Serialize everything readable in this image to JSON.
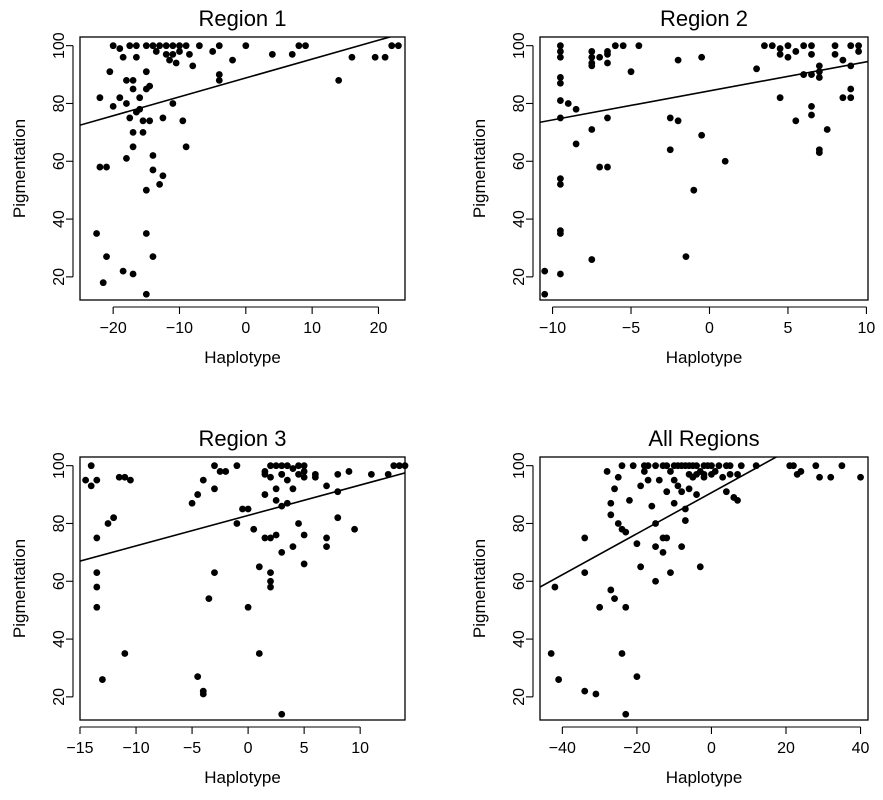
{
  "chart_data": [
    {
      "type": "scatter",
      "title": "Region 1",
      "xlabel": "Haplotype",
      "ylabel": "Pigmentation",
      "xlim": [
        -25,
        24
      ],
      "ylim": [
        12,
        103
      ],
      "xticks": [
        -20,
        -10,
        0,
        10,
        20
      ],
      "yticks": [
        20,
        40,
        60,
        80,
        100
      ],
      "grid": false,
      "regression_line": [
        [
          -25,
          72.5
        ],
        [
          24,
          104.5
        ]
      ],
      "points": [
        [
          -22.5,
          35
        ],
        [
          -22,
          82
        ],
        [
          -22,
          58
        ],
        [
          -21,
          58
        ],
        [
          -21,
          27
        ],
        [
          -20.5,
          91
        ],
        [
          -20,
          100
        ],
        [
          -20,
          79
        ],
        [
          -19,
          99
        ],
        [
          -19,
          82
        ],
        [
          -18.5,
          96
        ],
        [
          -18.5,
          22
        ],
        [
          -18,
          88
        ],
        [
          -18,
          80
        ],
        [
          -18,
          61
        ],
        [
          -17.5,
          100
        ],
        [
          -17.5,
          75
        ],
        [
          -17,
          88
        ],
        [
          -17,
          85
        ],
        [
          -17,
          70
        ],
        [
          -17,
          65
        ],
        [
          -16.5,
          100
        ],
        [
          -16.5,
          96
        ],
        [
          -16.5,
          77
        ],
        [
          -16,
          82
        ],
        [
          -16,
          78
        ],
        [
          -15.5,
          70
        ],
        [
          -15.5,
          74
        ],
        [
          -15,
          100
        ],
        [
          -15,
          91
        ],
        [
          -15,
          85
        ],
        [
          -15,
          50
        ],
        [
          -15,
          35
        ],
        [
          -15,
          14
        ],
        [
          -14.5,
          86
        ],
        [
          -14.5,
          74
        ],
        [
          -14,
          100
        ],
        [
          -14,
          62
        ],
        [
          -14,
          57
        ],
        [
          -14,
          27
        ],
        [
          -13.5,
          98
        ],
        [
          -13,
          100
        ],
        [
          -13,
          52
        ],
        [
          -12.5,
          55
        ],
        [
          -12.5,
          75
        ],
        [
          -12,
          100
        ],
        [
          -12,
          97
        ],
        [
          -11.5,
          95
        ],
        [
          -11,
          100
        ],
        [
          -11,
          97
        ],
        [
          -11,
          80
        ],
        [
          -10.5,
          94
        ],
        [
          -10,
          98
        ],
        [
          -10,
          100
        ],
        [
          -9.5,
          74
        ],
        [
          -9,
          65
        ],
        [
          -9,
          100
        ],
        [
          -8.5,
          97
        ],
        [
          -8,
          93
        ],
        [
          -7,
          100
        ],
        [
          -5,
          98
        ],
        [
          -4,
          100
        ],
        [
          -4,
          90
        ],
        [
          -4,
          88
        ],
        [
          -2,
          95
        ],
        [
          0,
          100
        ],
        [
          4,
          97
        ],
        [
          7,
          97
        ],
        [
          8,
          100
        ],
        [
          9,
          100
        ],
        [
          14,
          88
        ],
        [
          16,
          96
        ],
        [
          19.5,
          96
        ],
        [
          21,
          96
        ],
        [
          22,
          100
        ],
        [
          23,
          100
        ],
        [
          -21.5,
          18
        ],
        [
          -17,
          21
        ]
      ],
      "n_points": 78
    },
    {
      "type": "scatter",
      "title": "Region 2",
      "xlabel": "Haplotype",
      "ylabel": "Pigmentation",
      "xlim": [
        -10.8,
        10.1
      ],
      "ylim": [
        12,
        103
      ],
      "xticks": [
        -10,
        -5,
        0,
        5,
        10
      ],
      "yticks": [
        20,
        40,
        60,
        80,
        100
      ],
      "grid": false,
      "regression_line": [
        [
          -10.8,
          73.5
        ],
        [
          10.1,
          94.5
        ]
      ],
      "points": [
        [
          -10.5,
          22
        ],
        [
          -10.5,
          14
        ],
        [
          -9.5,
          100
        ],
        [
          -9.5,
          98
        ],
        [
          -9.5,
          96
        ],
        [
          -9.5,
          89
        ],
        [
          -9.5,
          87
        ],
        [
          -9.5,
          81
        ],
        [
          -9.5,
          75
        ],
        [
          -9.5,
          54
        ],
        [
          -9.5,
          52
        ],
        [
          -9.5,
          36
        ],
        [
          -9.5,
          35
        ],
        [
          -9.5,
          21
        ],
        [
          -9,
          80
        ],
        [
          -8.5,
          78
        ],
        [
          -8.5,
          66
        ],
        [
          -7.5,
          98
        ],
        [
          -7.5,
          96
        ],
        [
          -7.5,
          94
        ],
        [
          -7.5,
          93
        ],
        [
          -7.5,
          71
        ],
        [
          -7.5,
          26
        ],
        [
          -7,
          96
        ],
        [
          -7,
          58
        ],
        [
          -6.5,
          98
        ],
        [
          -6.5,
          97
        ],
        [
          -6.5,
          94
        ],
        [
          -6.5,
          58
        ],
        [
          -6.5,
          75
        ],
        [
          -6,
          100
        ],
        [
          -5.5,
          100
        ],
        [
          -5,
          91
        ],
        [
          -4.5,
          100
        ],
        [
          -2.5,
          75
        ],
        [
          -2.5,
          64
        ],
        [
          -2,
          95
        ],
        [
          -2,
          74
        ],
        [
          -1.5,
          27
        ],
        [
          -1,
          50
        ],
        [
          -0.5,
          96
        ],
        [
          -0.5,
          69
        ],
        [
          1,
          60
        ],
        [
          3,
          92
        ],
        [
          3.5,
          100
        ],
        [
          4,
          100
        ],
        [
          4.5,
          99
        ],
        [
          4.5,
          97
        ],
        [
          5,
          100
        ],
        [
          5,
          96
        ],
        [
          4.5,
          82
        ],
        [
          5.5,
          74
        ],
        [
          5.5,
          98
        ],
        [
          6,
          100
        ],
        [
          6,
          90
        ],
        [
          6.5,
          100
        ],
        [
          6.5,
          97
        ],
        [
          6.5,
          79
        ],
        [
          6.5,
          76
        ],
        [
          6.5,
          90
        ],
        [
          7,
          93
        ],
        [
          7,
          91
        ],
        [
          7,
          89
        ],
        [
          7,
          64
        ],
        [
          7,
          63
        ],
        [
          7.5,
          71
        ],
        [
          8,
          100
        ],
        [
          8,
          97
        ],
        [
          8.5,
          95
        ],
        [
          8.5,
          82
        ],
        [
          9,
          100
        ],
        [
          9,
          93
        ],
        [
          9,
          85
        ],
        [
          9.5,
          100
        ],
        [
          9.5,
          98
        ],
        [
          9,
          82
        ]
      ],
      "n_points": 76
    },
    {
      "type": "scatter",
      "title": "Region 3",
      "xlabel": "Haplotype",
      "ylabel": "Pigmentation",
      "xlim": [
        -15,
        14
      ],
      "ylim": [
        12,
        103
      ],
      "xticks": [
        -15,
        -10,
        -5,
        0,
        5,
        10
      ],
      "yticks": [
        20,
        40,
        60,
        80,
        100
      ],
      "grid": false,
      "regression_line": [
        [
          -15,
          67
        ],
        [
          14,
          97.5
        ]
      ],
      "points": [
        [
          -14.5,
          95
        ],
        [
          -14,
          100
        ],
        [
          -14,
          93
        ],
        [
          -13.5,
          95
        ],
        [
          -13.5,
          75
        ],
        [
          -13.5,
          63
        ],
        [
          -13.5,
          58
        ],
        [
          -13.5,
          51
        ],
        [
          -13,
          26
        ],
        [
          -12.5,
          80
        ],
        [
          -12,
          82
        ],
        [
          -11.5,
          96
        ],
        [
          -11,
          96
        ],
        [
          -11,
          35
        ],
        [
          -10.5,
          95
        ],
        [
          -5,
          87
        ],
        [
          -4.5,
          90
        ],
        [
          -4.5,
          27
        ],
        [
          -4,
          22
        ],
        [
          -4,
          21
        ],
        [
          -4,
          95
        ],
        [
          -3.5,
          54
        ],
        [
          -3,
          100
        ],
        [
          -3,
          92
        ],
        [
          -3,
          63
        ],
        [
          -2.5,
          98
        ],
        [
          -2,
          98
        ],
        [
          -1,
          80
        ],
        [
          -1,
          100
        ],
        [
          -0.5,
          85
        ],
        [
          0,
          85
        ],
        [
          0,
          51
        ],
        [
          0.5,
          78
        ],
        [
          1,
          65
        ],
        [
          1,
          35
        ],
        [
          1.5,
          98
        ],
        [
          1.5,
          97
        ],
        [
          1.5,
          90
        ],
        [
          1.5,
          75
        ],
        [
          2,
          100
        ],
        [
          2,
          96
        ],
        [
          2,
          75
        ],
        [
          2,
          63
        ],
        [
          2,
          60
        ],
        [
          2,
          58
        ],
        [
          2.5,
          100
        ],
        [
          2.5,
          92
        ],
        [
          2.5,
          88
        ],
        [
          2.5,
          76
        ],
        [
          3,
          100
        ],
        [
          3,
          97
        ],
        [
          3,
          97
        ],
        [
          3,
          86
        ],
        [
          3,
          70
        ],
        [
          3,
          14
        ],
        [
          3.5,
          100
        ],
        [
          3.5,
          95
        ],
        [
          3.5,
          87
        ],
        [
          4,
          99
        ],
        [
          4,
          92
        ],
        [
          4,
          72
        ],
        [
          4.5,
          100
        ],
        [
          4.5,
          97
        ],
        [
          4.5,
          80
        ],
        [
          5,
          98
        ],
        [
          5,
          100
        ],
        [
          5,
          96
        ],
        [
          5,
          76
        ],
        [
          5,
          66
        ],
        [
          6,
          97
        ],
        [
          6,
          96
        ],
        [
          7,
          93
        ],
        [
          7,
          75
        ],
        [
          7,
          72
        ],
        [
          8,
          97
        ],
        [
          8,
          91
        ],
        [
          8,
          82
        ],
        [
          9,
          98
        ],
        [
          9.5,
          78
        ],
        [
          11,
          97
        ],
        [
          13,
          100
        ],
        [
          13.5,
          100
        ],
        [
          14,
          100
        ],
        [
          12.5,
          97
        ]
      ],
      "n_points": 84
    },
    {
      "type": "scatter",
      "title": "All Regions",
      "xlabel": "Haplotype",
      "ylabel": "Pigmentation",
      "xlim": [
        -46,
        42
      ],
      "ylim": [
        12,
        103
      ],
      "xticks": [
        -40,
        -20,
        0,
        20,
        40
      ],
      "yticks": [
        20,
        40,
        60,
        80,
        100
      ],
      "grid": false,
      "regression_line": [
        [
          -46,
          58
        ],
        [
          19.5,
          104.5
        ]
      ],
      "points": [
        [
          -43,
          35
        ],
        [
          -42,
          58
        ],
        [
          -41,
          26
        ],
        [
          -34,
          63
        ],
        [
          -34,
          75
        ],
        [
          -34,
          22
        ],
        [
          -31,
          21
        ],
        [
          -30,
          51
        ],
        [
          -28,
          98
        ],
        [
          -27,
          87
        ],
        [
          -27,
          83
        ],
        [
          -27,
          57
        ],
        [
          -26,
          92
        ],
        [
          -26,
          54
        ],
        [
          -25,
          96
        ],
        [
          -25,
          80
        ],
        [
          -24,
          78
        ],
        [
          -24,
          35
        ],
        [
          -23,
          51
        ],
        [
          -23,
          14
        ],
        [
          -23,
          77
        ],
        [
          -22,
          88
        ],
        [
          -21,
          100
        ],
        [
          -20,
          73
        ],
        [
          -20,
          27
        ],
        [
          -19,
          93
        ],
        [
          -19,
          65
        ],
        [
          -18,
          98
        ],
        [
          -17,
          100
        ],
        [
          -17,
          95
        ],
        [
          -16,
          86
        ],
        [
          -15,
          100
        ],
        [
          -15,
          80
        ],
        [
          -15,
          72
        ],
        [
          -15,
          60
        ],
        [
          -14,
          95
        ],
        [
          -13,
          100
        ],
        [
          -13,
          75
        ],
        [
          -13,
          70
        ],
        [
          -12,
          100
        ],
        [
          -12,
          91
        ],
        [
          -12,
          75
        ],
        [
          -11,
          98
        ],
        [
          -11,
          63
        ],
        [
          -10,
          100
        ],
        [
          -10,
          95
        ],
        [
          -10,
          87
        ],
        [
          -9,
          100
        ],
        [
          -9,
          93
        ],
        [
          -8,
          100
        ],
        [
          -8,
          91
        ],
        [
          -8,
          72
        ],
        [
          -7,
          100
        ],
        [
          -7,
          85
        ],
        [
          -7,
          81
        ],
        [
          -6,
          97
        ],
        [
          -6,
          92
        ],
        [
          -5,
          100
        ],
        [
          -5,
          96
        ],
        [
          -4,
          100
        ],
        [
          -4,
          97
        ],
        [
          -4,
          90
        ],
        [
          -3,
          98
        ],
        [
          -3,
          65
        ],
        [
          -2,
          100
        ],
        [
          -2,
          96
        ],
        [
          -1,
          100
        ],
        [
          0,
          100
        ],
        [
          0,
          97
        ],
        [
          1,
          98
        ],
        [
          2,
          100
        ],
        [
          3,
          96
        ],
        [
          4,
          91
        ],
        [
          5,
          100
        ],
        [
          5,
          97
        ],
        [
          6,
          89
        ],
        [
          7,
          88
        ],
        [
          7,
          97
        ],
        [
          8,
          100
        ],
        [
          12,
          100
        ],
        [
          21,
          100
        ],
        [
          22,
          100
        ],
        [
          23,
          97
        ],
        [
          24,
          98
        ],
        [
          28,
          100
        ],
        [
          29,
          96
        ],
        [
          32,
          96
        ],
        [
          35,
          100
        ],
        [
          40,
          96
        ],
        [
          -24,
          100
        ],
        [
          -18,
          100
        ],
        [
          -6,
          100
        ],
        [
          -2,
          97
        ],
        [
          4,
          100
        ]
      ],
      "n_points": 94
    }
  ]
}
